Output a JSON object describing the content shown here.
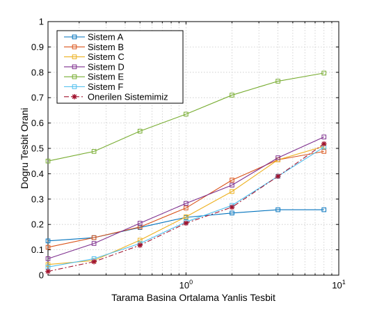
{
  "chart_data": {
    "type": "line",
    "xlabel": "Tarama Basina Ortalama Yanlis Tesbit",
    "ylabel": "Dogru Tesbit Orani",
    "xscale": "log",
    "xlim": [
      0.125,
      10
    ],
    "ylim": [
      0,
      1
    ],
    "xticks": [
      {
        "value": 1,
        "base": "10",
        "exp": "0"
      },
      {
        "value": 10,
        "base": "10",
        "exp": "1"
      }
    ],
    "yticks": [
      "0",
      "0.1",
      "0.2",
      "0.3",
      "0.4",
      "0.5",
      "0.6",
      "0.7",
      "0.8",
      "0.9",
      "1"
    ],
    "grid": true,
    "legend_position": "top-left",
    "x": [
      0.125,
      0.25,
      0.5,
      1,
      2,
      4,
      8
    ],
    "series": [
      {
        "name": "Sistem A",
        "color": "#0072BD",
        "marker": "square",
        "dash": "solid",
        "values": [
          0.135,
          0.148,
          0.188,
          0.228,
          0.245,
          0.258,
          0.258
        ]
      },
      {
        "name": "Sistem B",
        "color": "#D95319",
        "marker": "square",
        "dash": "solid",
        "values": [
          0.11,
          0.148,
          0.19,
          0.265,
          0.375,
          0.455,
          0.488
        ]
      },
      {
        "name": "Sistem C",
        "color": "#EDB120",
        "marker": "square",
        "dash": "solid",
        "values": [
          0.042,
          0.058,
          0.138,
          0.23,
          0.33,
          0.455,
          0.508
        ]
      },
      {
        "name": "Sistem D",
        "color": "#7E2F8E",
        "marker": "square",
        "dash": "solid",
        "values": [
          0.065,
          0.125,
          0.205,
          0.283,
          0.355,
          0.463,
          0.545
        ]
      },
      {
        "name": "Sistem E",
        "color": "#77AC30",
        "marker": "square",
        "dash": "solid",
        "values": [
          0.45,
          0.488,
          0.568,
          0.635,
          0.71,
          0.765,
          0.797
        ]
      },
      {
        "name": "Sistem F",
        "color": "#4DBEEE",
        "marker": "square",
        "dash": "solid",
        "values": [
          0.032,
          0.065,
          0.125,
          0.21,
          0.275,
          0.39,
          0.505
        ]
      },
      {
        "name": "Onerilen Sistemimiz",
        "color": "#A2142F",
        "marker": "star",
        "dash": "dashdot",
        "values": [
          0.015,
          0.053,
          0.118,
          0.205,
          0.268,
          0.39,
          0.518
        ]
      }
    ]
  }
}
